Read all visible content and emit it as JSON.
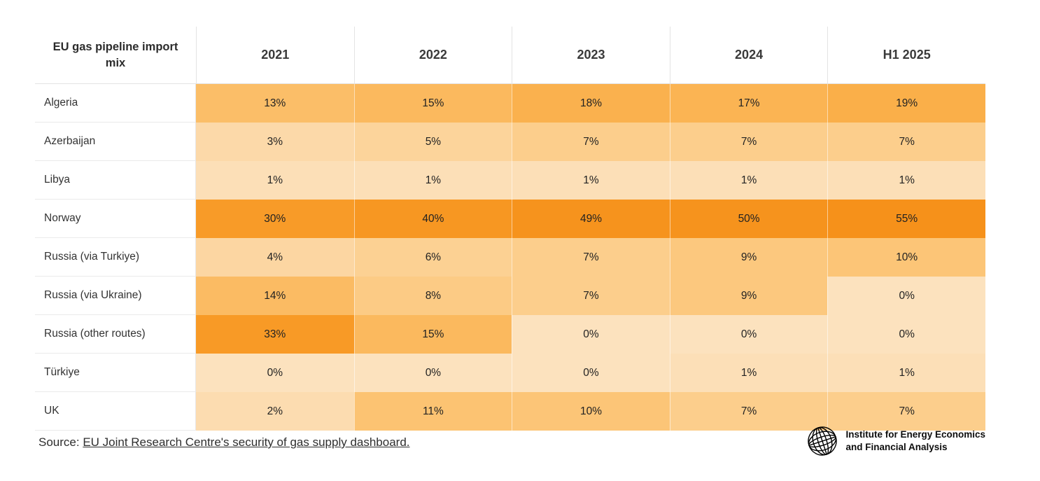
{
  "chart_data": {
    "type": "heatmap",
    "corner_label": "EU gas pipeline import mix",
    "columns": [
      "2021",
      "2022",
      "2023",
      "2024",
      "H1 2025"
    ],
    "rows": [
      "Algeria",
      "Azerbaijan",
      "Libya",
      "Norway",
      "Russia (via Turkiye)",
      "Russia (via Ukraine)",
      "Russia (other routes)",
      "Türkiye",
      "UK"
    ],
    "values": [
      [
        13,
        15,
        18,
        17,
        19
      ],
      [
        3,
        5,
        7,
        7,
        7
      ],
      [
        1,
        1,
        1,
        1,
        1
      ],
      [
        30,
        40,
        49,
        50,
        55
      ],
      [
        4,
        6,
        7,
        9,
        10
      ],
      [
        14,
        8,
        7,
        9,
        0
      ],
      [
        33,
        15,
        0,
        0,
        0
      ],
      [
        0,
        0,
        0,
        1,
        1
      ],
      [
        2,
        11,
        10,
        7,
        7
      ]
    ],
    "unit": "%",
    "value_range": [
      0,
      55
    ],
    "color_scale": {
      "anchors": [
        [
          0,
          "#FCE2BE"
        ],
        [
          10,
          "#FCC577"
        ],
        [
          20,
          "#FAAC44"
        ],
        [
          30,
          "#F89B28"
        ],
        [
          55,
          "#F6911A"
        ]
      ]
    }
  },
  "footer": {
    "source_prefix": "Source: ",
    "source_link": "EU Joint Research Centre's security of gas supply dashboard."
  },
  "logo": {
    "line1": "Institute for Energy Economics",
    "line2": "and Financial Analysis"
  }
}
